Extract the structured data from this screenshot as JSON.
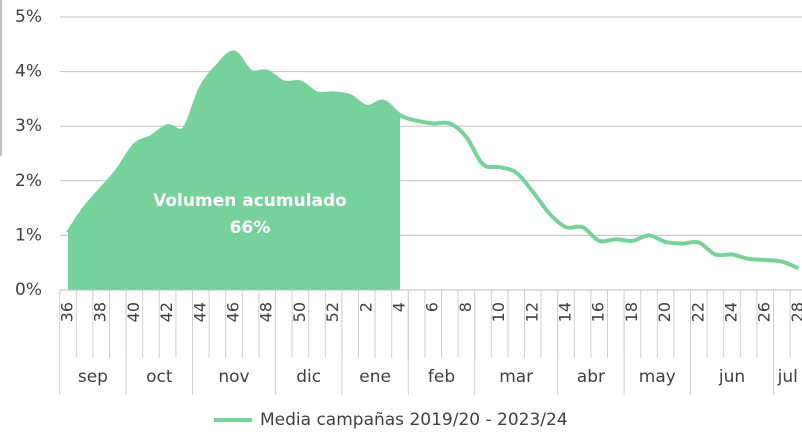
{
  "chart_data": {
    "type": "area-line",
    "categories": [
      "36",
      null,
      "38",
      null,
      "40",
      null,
      "42",
      null,
      "44",
      null,
      "46",
      null,
      "48",
      null,
      "50",
      null,
      "52",
      null,
      "2",
      null,
      "4",
      null,
      "6",
      null,
      "8",
      null,
      "10",
      null,
      "12",
      null,
      "14",
      null,
      "16",
      null,
      "18",
      null,
      "20",
      null,
      "22",
      null,
      "24",
      null,
      "26",
      null,
      "28"
    ],
    "series": [
      {
        "name": "Media campañas 2019/20 - 2023/24",
        "color": "#77d19a",
        "values": [
          1.05,
          1.5,
          1.85,
          2.2,
          2.65,
          2.8,
          3.0,
          2.95,
          3.7,
          4.1,
          4.35,
          4.0,
          4.0,
          3.8,
          3.8,
          3.6,
          3.6,
          3.55,
          3.35,
          3.45,
          3.2,
          3.1,
          3.05,
          3.05,
          2.8,
          2.3,
          2.25,
          2.15,
          1.8,
          1.4,
          1.15,
          1.15,
          0.9,
          0.93,
          0.9,
          1.0,
          0.88,
          0.85,
          0.87,
          0.65,
          0.65,
          0.57,
          0.55,
          0.52,
          0.4
        ]
      }
    ],
    "shaded_through": 20,
    "annotation": [
      "Volumen acumulado",
      "66%"
    ],
    "month_groups": [
      {
        "label": "sep",
        "start": 0,
        "end": 3
      },
      {
        "label": "oct",
        "start": 4,
        "end": 7
      },
      {
        "label": "nov",
        "start": 8,
        "end": 12
      },
      {
        "label": "dic",
        "start": 13,
        "end": 16
      },
      {
        "label": "ene",
        "start": 17,
        "end": 20
      },
      {
        "label": "feb",
        "start": 21,
        "end": 24
      },
      {
        "label": "mar",
        "start": 25,
        "end": 29
      },
      {
        "label": "abr",
        "start": 30,
        "end": 33
      },
      {
        "label": "may",
        "start": 34,
        "end": 37
      },
      {
        "label": "jun",
        "start": 38,
        "end": 42
      },
      {
        "label": "jul",
        "start": 43,
        "end": 44
      }
    ],
    "ylim": [
      0,
      5
    ],
    "yticks": [
      {
        "value": 0,
        "label": "0%"
      },
      {
        "value": 1,
        "label": "1%"
      },
      {
        "value": 2,
        "label": "2%"
      },
      {
        "value": 3,
        "label": "3%"
      },
      {
        "value": 4,
        "label": "4%"
      },
      {
        "value": 5,
        "label": "5%"
      }
    ],
    "grid": true
  }
}
